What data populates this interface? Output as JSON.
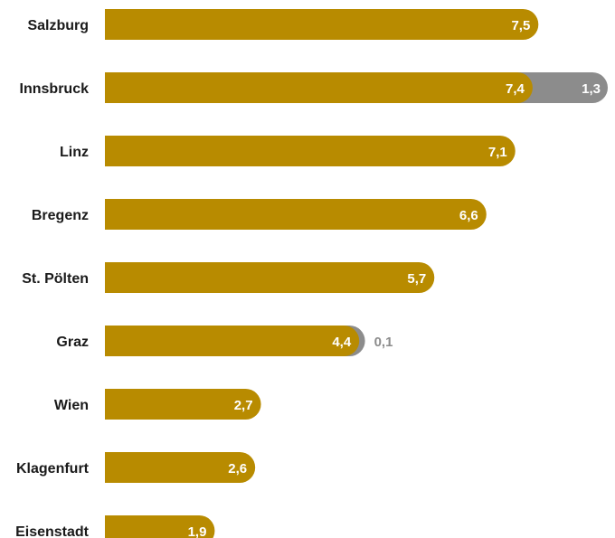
{
  "chart_data": {
    "type": "bar",
    "orientation": "horizontal",
    "stacked": true,
    "categories": [
      "Salzburg",
      "Innsbruck",
      "Linz",
      "Bregenz",
      "St. Pölten",
      "Graz",
      "Wien",
      "Klagenfurt",
      "Eisenstadt"
    ],
    "value_labels": [
      [
        "7,5",
        "7,4",
        "7,1",
        "6,6",
        "5,7",
        "4,4",
        "2,7",
        "2,6",
        "1,9"
      ],
      [
        null,
        "1,3",
        null,
        null,
        null,
        "0,1",
        null,
        null,
        null
      ]
    ],
    "series": [
      {
        "values": [
          7.5,
          7.4,
          7.1,
          6.6,
          5.7,
          4.4,
          2.7,
          2.6,
          1.9
        ],
        "color": "#b88b00"
      },
      {
        "values": [
          null,
          1.3,
          null,
          null,
          null,
          0.1,
          null,
          null,
          null
        ],
        "color": "#8c8c8c"
      }
    ],
    "xlim": [
      0,
      8.7
    ],
    "grid": false,
    "legend": "none",
    "colors": {
      "primary": "#b88b00",
      "secondary": "#8c8c8c",
      "primary_label_text": "#ffffff",
      "secondary_label_text_on_bar": "#ffffff",
      "secondary_label_text_outside": "#8c8c8c",
      "category_label_text": "#1a1a1a"
    }
  }
}
